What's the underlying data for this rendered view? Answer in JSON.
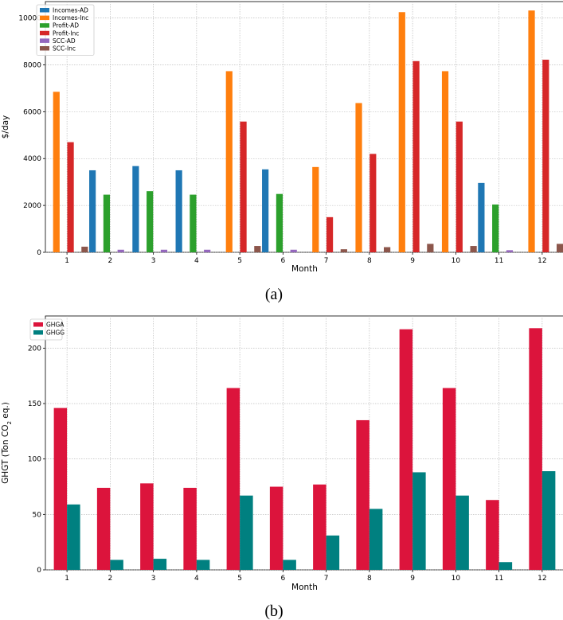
{
  "chart_data": [
    {
      "type": "bar",
      "caption": "(a)",
      "xlabel": "Month",
      "ylabel": "$/day",
      "ylim": [
        0,
        10700
      ],
      "yticks": [
        0,
        2000,
        4000,
        6000,
        8000,
        10000
      ],
      "grid": true,
      "legend_position": "top-left",
      "categories": [
        "1",
        "2",
        "3",
        "4",
        "5",
        "6",
        "7",
        "8",
        "9",
        "10",
        "11",
        "12"
      ],
      "series": [
        {
          "name": "Incomes-AD",
          "color": "#1f77b4",
          "values": [
            0,
            3500,
            3680,
            3500,
            0,
            3540,
            0,
            0,
            0,
            0,
            2960,
            0
          ]
        },
        {
          "name": "Incomes-Inc",
          "color": "#ff7f0e",
          "values": [
            6850,
            0,
            0,
            0,
            7730,
            0,
            3640,
            6370,
            10250,
            7730,
            0,
            10320
          ]
        },
        {
          "name": "Profit-AD",
          "color": "#2ca02c",
          "values": [
            0,
            2460,
            2610,
            2460,
            0,
            2490,
            0,
            0,
            0,
            0,
            2040,
            0
          ]
        },
        {
          "name": "Profit-Inc",
          "color": "#d62728",
          "values": [
            4700,
            0,
            0,
            0,
            5580,
            0,
            1500,
            4200,
            8160,
            5580,
            0,
            8220
          ]
        },
        {
          "name": "SCC-AD",
          "color": "#9467bd",
          "values": [
            0,
            110,
            110,
            110,
            0,
            110,
            0,
            0,
            0,
            0,
            90,
            0
          ]
        },
        {
          "name": "SCC-Inc",
          "color": "#8c564b",
          "values": [
            240,
            0,
            0,
            0,
            270,
            0,
            130,
            220,
            360,
            270,
            0,
            360
          ]
        }
      ]
    },
    {
      "type": "bar",
      "caption": "(b)",
      "xlabel": "Month",
      "ylabel_main": "GHGT (Ton CO",
      "ylabel_sub": "2",
      "ylabel_end": " eq.)",
      "ylim": [
        0,
        229
      ],
      "yticks": [
        0,
        50,
        100,
        150,
        200
      ],
      "grid": true,
      "legend_position": "top-left",
      "categories": [
        "1",
        "2",
        "3",
        "4",
        "5",
        "6",
        "7",
        "8",
        "9",
        "10",
        "11",
        "12"
      ],
      "series": [
        {
          "name": "GHGA",
          "color": "#dc143c",
          "values": [
            146,
            74,
            78,
            74,
            164,
            75,
            77,
            135,
            217,
            164,
            63,
            218
          ]
        },
        {
          "name": "GHGG",
          "color": "#008080",
          "values": [
            59,
            9,
            10,
            9,
            67,
            9,
            31,
            55,
            88,
            67,
            7,
            89
          ]
        }
      ]
    }
  ]
}
